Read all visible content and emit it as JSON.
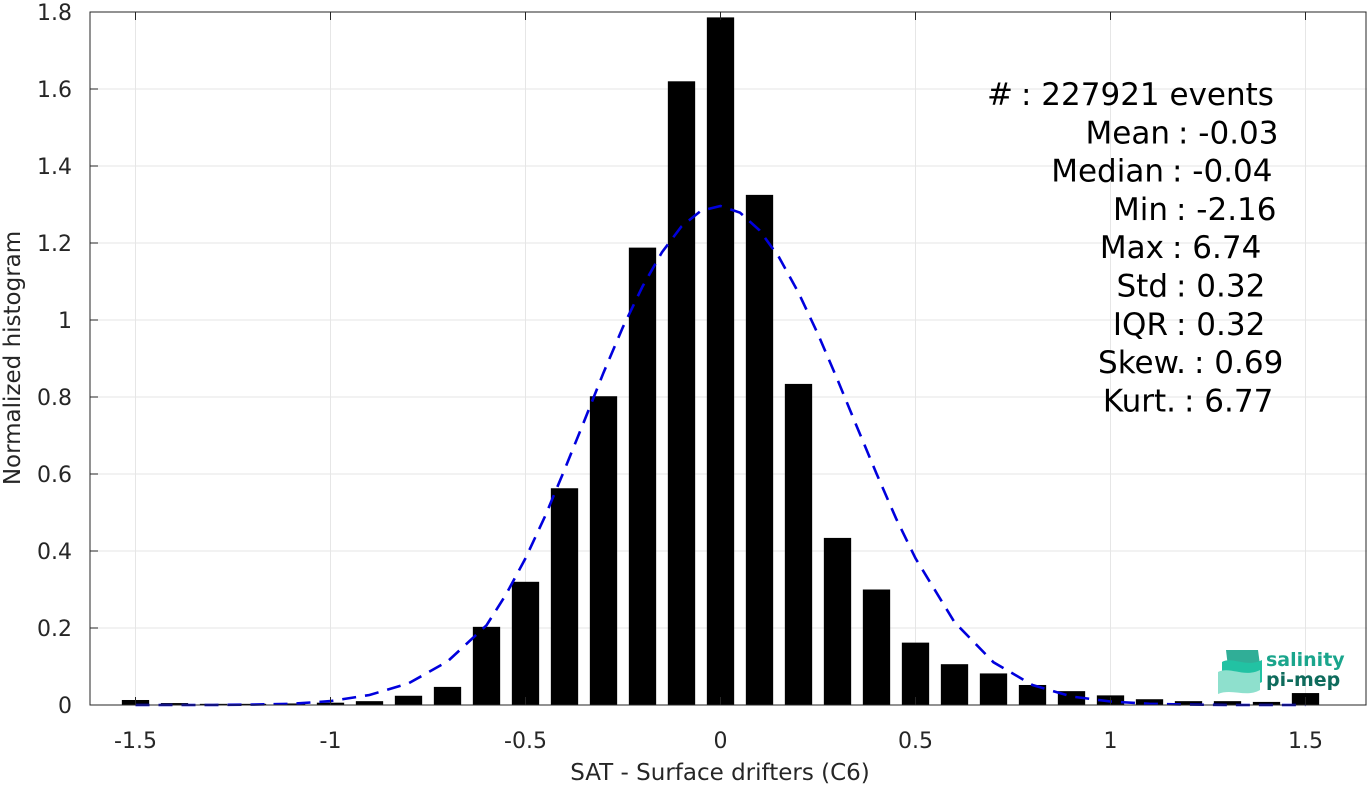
{
  "chart_data": {
    "type": "bar",
    "xlabel": "SAT - Surface drifters (C6)",
    "ylabel": "Normalized histogram",
    "xlim": [
      -1.55,
      1.55
    ],
    "ylim": [
      0,
      1.8
    ],
    "x_ticks": [
      -1.5,
      -1,
      -0.5,
      0,
      0.5,
      1,
      1.5
    ],
    "x_tick_labels": [
      "-1.5",
      "-1",
      "-0.5",
      "0",
      "0.5",
      "1",
      "1.5"
    ],
    "y_ticks": [
      0,
      0.2,
      0.4,
      0.6,
      0.8,
      1,
      1.2,
      1.4,
      1.6,
      1.8
    ],
    "y_tick_labels": [
      "0",
      "0.2",
      "0.4",
      "0.6",
      "0.8",
      "1",
      "1.2",
      "1.4",
      "1.6",
      "1.8"
    ],
    "grid": true,
    "bar_width": 0.07,
    "bar_color": "#000000",
    "bins": {
      "x": [
        -1.5,
        -1.4,
        -1.3,
        -1.2,
        -1.1,
        -1.0,
        -0.9,
        -0.8,
        -0.7,
        -0.6,
        -0.5,
        -0.4,
        -0.3,
        -0.2,
        -0.1,
        0.0,
        0.1,
        0.2,
        0.3,
        0.4,
        0.5,
        0.6,
        0.7,
        0.8,
        0.9,
        1.0,
        1.1,
        1.2,
        1.3,
        1.4,
        1.5
      ],
      "values": [
        0.013,
        0.005,
        0.003,
        0.003,
        0.004,
        0.006,
        0.01,
        0.024,
        0.047,
        0.203,
        0.32,
        0.563,
        0.802,
        1.188,
        1.62,
        1.786,
        1.325,
        0.834,
        0.434,
        0.3,
        0.162,
        0.106,
        0.082,
        0.052,
        0.036,
        0.025,
        0.015,
        0.01,
        0.01,
        0.008,
        0.031
      ]
    },
    "fit_curve": {
      "style": "dashed",
      "color": "#0000dd",
      "x": [
        -1.5,
        -1.4,
        -1.3,
        -1.2,
        -1.1,
        -1.0,
        -0.9,
        -0.8,
        -0.7,
        -0.6,
        -0.55,
        -0.5,
        -0.45,
        -0.4,
        -0.35,
        -0.3,
        -0.25,
        -0.2,
        -0.15,
        -0.1,
        -0.05,
        0.0,
        0.05,
        0.1,
        0.15,
        0.2,
        0.25,
        0.3,
        0.35,
        0.4,
        0.45,
        0.5,
        0.6,
        0.7,
        0.8,
        0.9,
        1.0,
        1.1,
        1.2,
        1.3,
        1.4,
        1.5
      ],
      "y": [
        0.0,
        0.0,
        0.0,
        0.001,
        0.003,
        0.01,
        0.026,
        0.056,
        0.113,
        0.207,
        0.287,
        0.381,
        0.49,
        0.611,
        0.736,
        0.863,
        0.982,
        1.087,
        1.176,
        1.243,
        1.284,
        1.296,
        1.279,
        1.233,
        1.163,
        1.071,
        0.963,
        0.845,
        0.722,
        0.601,
        0.485,
        0.381,
        0.215,
        0.111,
        0.052,
        0.022,
        0.009,
        0.003,
        0.001,
        0.0,
        0.0,
        0.0
      ]
    },
    "stats": [
      {
        "label": "#  ",
        "value": ": 227921 events"
      },
      {
        "label": "Mean",
        "value": ": -0.03"
      },
      {
        "label": "Median",
        "value": ": -0.04"
      },
      {
        "label": "Min",
        "value": ": -2.16"
      },
      {
        "label": "Max",
        "value": ": 6.74"
      },
      {
        "label": "Std",
        "value": ": 0.32"
      },
      {
        "label": "IQR",
        "value": ": 0.32"
      },
      {
        "label": "Skew.",
        "value": ": 0.69"
      },
      {
        "label": "Kurt.",
        "value": ": 6.77"
      }
    ]
  },
  "logo": {
    "line1": "salinity",
    "line2": "pi-mep",
    "color_primary": "#1aa58c",
    "color_dark": "#0e6b5c"
  }
}
